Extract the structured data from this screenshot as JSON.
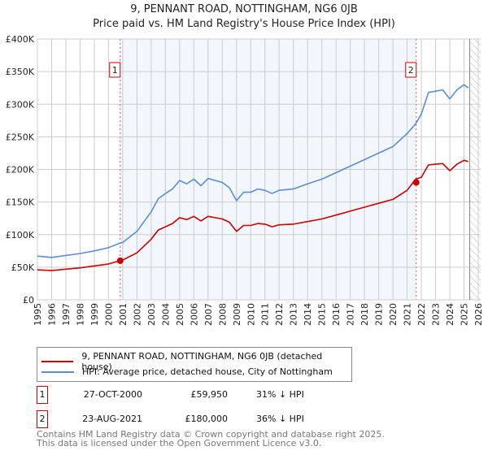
{
  "chart_data": {
    "type": "line",
    "title": "9, PENNANT ROAD, NOTTINGHAM, NG6 0JB",
    "subtitle": "Price paid vs. HM Land Registry's House Price Index (HPI)",
    "xlim": [
      1995,
      2026
    ],
    "ylim": [
      0,
      400000
    ],
    "yticks": [
      {
        "v": 0,
        "label": "£0"
      },
      {
        "v": 50000,
        "label": "£50K"
      },
      {
        "v": 100000,
        "label": "£100K"
      },
      {
        "v": 150000,
        "label": "£150K"
      },
      {
        "v": 200000,
        "label": "£200K"
      },
      {
        "v": 250000,
        "label": "£250K"
      },
      {
        "v": 300000,
        "label": "£300K"
      },
      {
        "v": 350000,
        "label": "£350K"
      },
      {
        "v": 400000,
        "label": "£400K"
      }
    ],
    "xticks": [
      "1995",
      "1996",
      "1997",
      "1998",
      "1999",
      "2000",
      "2001",
      "2002",
      "2003",
      "2004",
      "2005",
      "2006",
      "2007",
      "2008",
      "2009",
      "2010",
      "2011",
      "2012",
      "2013",
      "2014",
      "2015",
      "2016",
      "2017",
      "2018",
      "2019",
      "2020",
      "2021",
      "2022",
      "2023",
      "2024",
      "2025",
      "2026"
    ],
    "grid": true,
    "shaded_period": [
      2000.82,
      2021.64
    ],
    "forecast_hatch_from": 2025.4,
    "x": [
      1995,
      1996,
      1997,
      1998,
      1999,
      2000,
      2000.8,
      2001,
      2002,
      2003,
      2003.5,
      2004,
      2004.5,
      2005,
      2005.5,
      2006,
      2006.5,
      2007,
      2007.5,
      2008,
      2008.5,
      2009,
      2009.5,
      2010,
      2010.5,
      2011,
      2011.5,
      2012,
      2013,
      2014,
      2015,
      2016,
      2017,
      2018,
      2019,
      2020,
      2021,
      2021.6,
      2022,
      2022.5,
      2023,
      2023.5,
      2024,
      2024.5,
      2025,
      2025.3
    ],
    "series": [
      {
        "name": "9, PENNANT ROAD, NOTTINGHAM, NG6 0JB (detached house)",
        "color": "#cc0000",
        "values": [
          46000,
          45000,
          47000,
          49000,
          52000,
          55000,
          60000,
          61000,
          72000,
          93000,
          107000,
          112000,
          117000,
          126000,
          123000,
          128000,
          121000,
          128000,
          126000,
          124000,
          119000,
          105000,
          114000,
          114000,
          117000,
          116000,
          112000,
          115000,
          116000,
          120000,
          124000,
          130000,
          136000,
          142000,
          148000,
          154000,
          168000,
          185000,
          188000,
          207000,
          208000,
          209000,
          198000,
          208000,
          214000,
          212000
        ]
      },
      {
        "name": "HPI: Average price, detached house, City of Nottingham",
        "color": "#5b8fd4",
        "values": [
          67000,
          65000,
          68000,
          71000,
          75000,
          80000,
          87000,
          88000,
          105000,
          135000,
          155000,
          163000,
          170000,
          183000,
          178000,
          185000,
          175000,
          186000,
          183000,
          180000,
          172000,
          152000,
          165000,
          165000,
          170000,
          168000,
          163000,
          168000,
          170000,
          178000,
          185000,
          195000,
          205000,
          215000,
          225000,
          235000,
          255000,
          270000,
          285000,
          318000,
          320000,
          322000,
          308000,
          322000,
          330000,
          325000
        ]
      }
    ],
    "sales": [
      {
        "id": "1",
        "x": 2000.82,
        "value": 59950,
        "date": "27-OCT-2000",
        "price": "£59,950",
        "hpi": "31% ↓ HPI"
      },
      {
        "id": "2",
        "x": 2021.64,
        "value": 180000,
        "date": "23-AUG-2021",
        "price": "£180,000",
        "hpi": "36% ↓ HPI"
      }
    ],
    "legend_position": "below"
  },
  "footer": {
    "line1": "Contains HM Land Registry data © Crown copyright and database right 2025.",
    "line2": "This data is licensed under the Open Government Licence v3.0."
  }
}
